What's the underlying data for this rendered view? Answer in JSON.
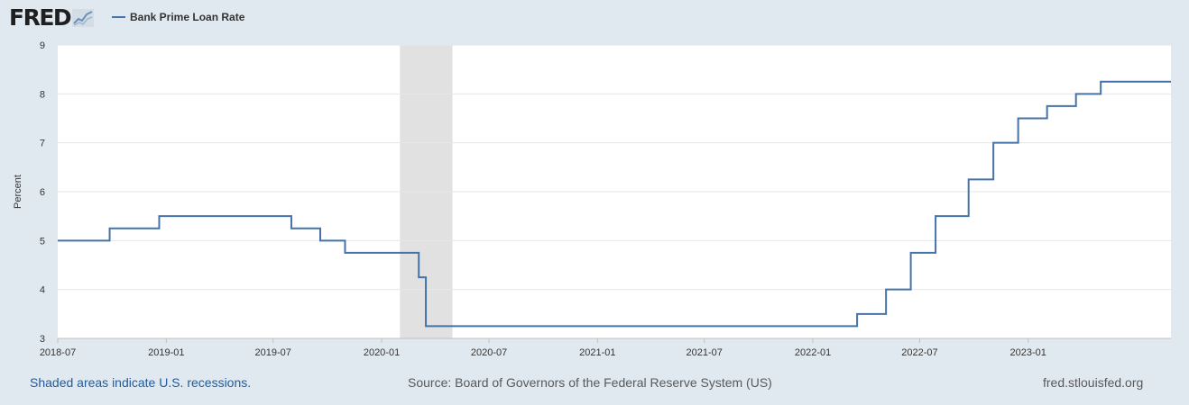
{
  "header": {
    "logo_text": "FRED",
    "legend_label": "Bank Prime Loan Rate"
  },
  "colors": {
    "series": "#4572a7",
    "recession": "#e1e1e1",
    "background": "#e1e9f0",
    "link": "#1f5ba1"
  },
  "footer": {
    "recession_note": "Shaded areas indicate U.S. recessions.",
    "source": "Source: Board of Governors of the Federal Reserve System (US)",
    "site": "fred.stlouisfed.org"
  },
  "chart_data": {
    "type": "line",
    "title": "",
    "xlabel": "",
    "ylabel": "Percent",
    "ylim": [
      3,
      9
    ],
    "y_ticks": [
      3,
      4,
      5,
      6,
      7,
      8,
      9
    ],
    "x_ticks": [
      "2018-07",
      "2019-01",
      "2019-07",
      "2020-01",
      "2020-07",
      "2021-01",
      "2021-07",
      "2022-01",
      "2022-07",
      "2023-01"
    ],
    "xlim": [
      "2018-07-01",
      "2023-08-31"
    ],
    "grid": true,
    "legend_position": "top-left",
    "step": true,
    "recessions": [
      {
        "start": "2020-02-01",
        "end": "2020-04-30"
      }
    ],
    "series": [
      {
        "name": "Bank Prime Loan Rate",
        "points": [
          {
            "date": "2018-07-01",
            "value": 5.0
          },
          {
            "date": "2018-09-27",
            "value": 5.25
          },
          {
            "date": "2018-12-20",
            "value": 5.5
          },
          {
            "date": "2019-08-01",
            "value": 5.25
          },
          {
            "date": "2019-09-19",
            "value": 5.0
          },
          {
            "date": "2019-10-31",
            "value": 4.75
          },
          {
            "date": "2020-03-04",
            "value": 4.25
          },
          {
            "date": "2020-03-16",
            "value": 3.25
          },
          {
            "date": "2022-03-17",
            "value": 3.5
          },
          {
            "date": "2022-05-05",
            "value": 4.0
          },
          {
            "date": "2022-06-16",
            "value": 4.75
          },
          {
            "date": "2022-07-28",
            "value": 5.5
          },
          {
            "date": "2022-09-22",
            "value": 6.25
          },
          {
            "date": "2022-11-03",
            "value": 7.0
          },
          {
            "date": "2022-12-15",
            "value": 7.5
          },
          {
            "date": "2023-02-02",
            "value": 7.75
          },
          {
            "date": "2023-03-23",
            "value": 8.0
          },
          {
            "date": "2023-05-04",
            "value": 8.25
          },
          {
            "date": "2023-08-31",
            "value": 8.25
          }
        ]
      }
    ]
  }
}
